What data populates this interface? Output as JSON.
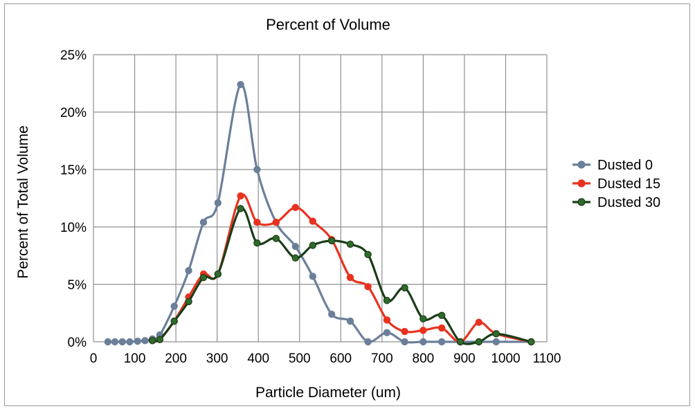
{
  "chart_data": {
    "type": "line",
    "title": "Percent of Volume",
    "xlabel": "Particle Diameter (um)",
    "ylabel": "Percent of Total Volume",
    "xlim": [
      0,
      1100
    ],
    "ylim": [
      0,
      25
    ],
    "xticks": [
      0,
      100,
      200,
      300,
      400,
      500,
      600,
      700,
      800,
      900,
      1000,
      1100
    ],
    "yticks": [
      0,
      5,
      10,
      15,
      20,
      25
    ],
    "xtick_labels": [
      "0",
      "100",
      "200",
      "300",
      "400",
      "500",
      "600",
      "700",
      "800",
      "900",
      "1000",
      "1100"
    ],
    "ytick_labels": [
      "0%",
      "5%",
      "10%",
      "15%",
      "20%",
      "25%"
    ],
    "grid": true,
    "legend_position": "right",
    "series": [
      {
        "name": "Dusted 0",
        "color": "#6b7f99",
        "marker_fill": "#6b7f99",
        "x": [
          35,
          52,
          70,
          88,
          107,
          125,
          143,
          161,
          196,
          231,
          267,
          302,
          357,
          397,
          443,
          490,
          532,
          578,
          623,
          666,
          712,
          755,
          800,
          845,
          890,
          935,
          977,
          1062
        ],
        "y": [
          0,
          0,
          0,
          0,
          0.05,
          0.1,
          0.25,
          0.6,
          3.1,
          6.2,
          10.4,
          12.1,
          22.4,
          15.0,
          10.4,
          8.3,
          5.7,
          2.4,
          1.8,
          0,
          0.8,
          0,
          0,
          0,
          0,
          0,
          0,
          0
        ]
      },
      {
        "name": "Dusted 15",
        "color": "#e8321f",
        "marker_fill": "#e8321f",
        "x": [
          143,
          161,
          196,
          231,
          267,
          302,
          357,
          397,
          443,
          490,
          532,
          578,
          623,
          666,
          712,
          755,
          800,
          845,
          890,
          935,
          977,
          1062
        ],
        "y": [
          0.1,
          0.2,
          1.8,
          3.9,
          5.9,
          5.9,
          12.7,
          10.4,
          10.4,
          11.7,
          10.5,
          8.9,
          5.6,
          4.8,
          1.9,
          0.9,
          1.0,
          1.2,
          0,
          1.7,
          0.7,
          0
        ]
      },
      {
        "name": "Dusted 30",
        "color": "#1a3d18",
        "marker_fill": "#2f6b2c",
        "x": [
          143,
          161,
          196,
          231,
          267,
          302,
          357,
          397,
          443,
          490,
          532,
          578,
          623,
          666,
          712,
          755,
          800,
          845,
          890,
          935,
          977,
          1062
        ],
        "y": [
          0.1,
          0.2,
          1.8,
          3.5,
          5.6,
          5.9,
          11.6,
          8.6,
          9.0,
          7.3,
          8.4,
          8.8,
          8.5,
          7.6,
          3.6,
          4.7,
          2.0,
          2.3,
          0,
          0,
          0.7,
          0
        ]
      }
    ]
  }
}
